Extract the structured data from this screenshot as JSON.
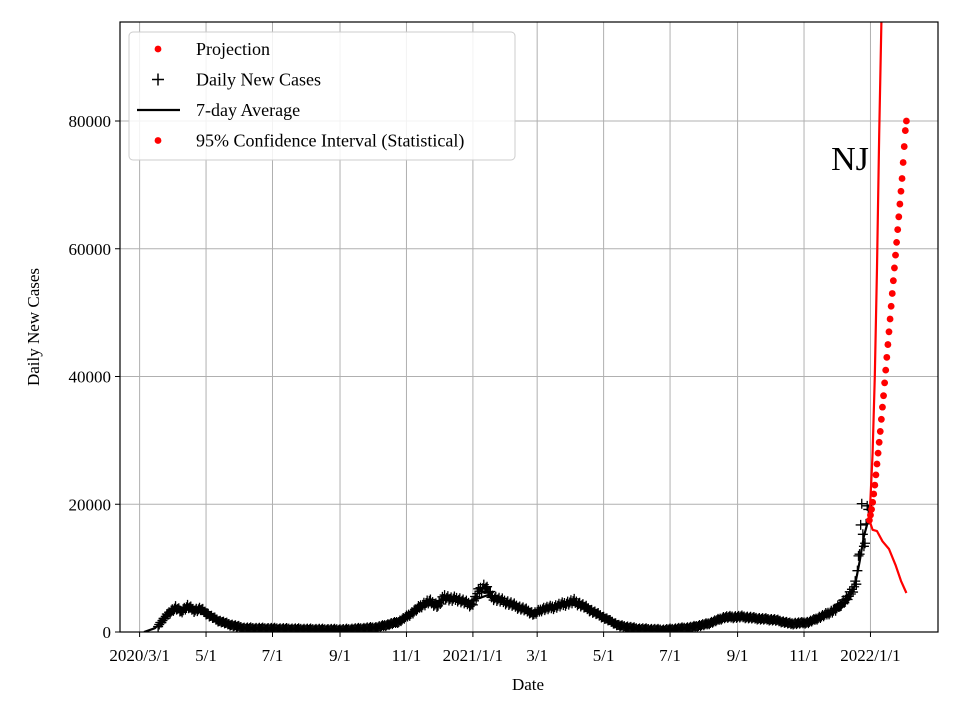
{
  "chart_data": {
    "type": "line",
    "state_label": "NJ",
    "xlabel": "Date",
    "ylabel": "Daily New Cases",
    "xlim": [
      "2020-02-12",
      "2022-03-04"
    ],
    "ylim": [
      0,
      95500
    ],
    "x_ticks": [
      {
        "date": "2020-03-01",
        "label": "2020/3/1"
      },
      {
        "date": "2020-05-01",
        "label": "5/1"
      },
      {
        "date": "2020-07-01",
        "label": "7/1"
      },
      {
        "date": "2020-09-01",
        "label": "9/1"
      },
      {
        "date": "2020-11-01",
        "label": "11/1"
      },
      {
        "date": "2021-01-01",
        "label": "2021/1/1"
      },
      {
        "date": "2021-03-01",
        "label": "3/1"
      },
      {
        "date": "2021-05-01",
        "label": "5/1"
      },
      {
        "date": "2021-07-01",
        "label": "7/1"
      },
      {
        "date": "2021-09-01",
        "label": "9/1"
      },
      {
        "date": "2021-11-01",
        "label": "11/1"
      },
      {
        "date": "2022-01-01",
        "label": "2022/1/1"
      }
    ],
    "y_ticks": [
      0,
      20000,
      40000,
      60000,
      80000
    ],
    "grid": true,
    "legend_position": "upper-left",
    "legend": [
      {
        "label": "Projection",
        "marker": "dot",
        "color": "#ff0000"
      },
      {
        "label": "Daily New Cases",
        "marker": "plus",
        "color": "#000000"
      },
      {
        "label": "7-day Average",
        "marker": "line",
        "color": "#000000"
      },
      {
        "label": "95% Confidence Interval (Statistical)",
        "marker": "dot",
        "color": "#ff0000"
      }
    ],
    "series": [
      {
        "name": "7-day Average",
        "style": "line",
        "color": "#000000",
        "points": [
          [
            "2020-03-05",
            0
          ],
          [
            "2020-03-15",
            600
          ],
          [
            "2020-03-25",
            2200
          ],
          [
            "2020-04-05",
            3500
          ],
          [
            "2020-04-15",
            3600
          ],
          [
            "2020-04-25",
            3100
          ],
          [
            "2020-05-05",
            2400
          ],
          [
            "2020-05-15",
            1500
          ],
          [
            "2020-05-25",
            1000
          ],
          [
            "2020-06-10",
            600
          ],
          [
            "2020-07-01",
            400
          ],
          [
            "2020-08-01",
            400
          ],
          [
            "2020-09-01",
            400
          ],
          [
            "2020-09-20",
            500
          ],
          [
            "2020-10-10",
            900
          ],
          [
            "2020-10-25",
            1700
          ],
          [
            "2020-11-10",
            3400
          ],
          [
            "2020-11-25",
            4500
          ],
          [
            "2020-12-10",
            5300
          ],
          [
            "2020-12-25",
            4700
          ],
          [
            "2021-01-05",
            5200
          ],
          [
            "2021-01-15",
            5800
          ],
          [
            "2021-01-25",
            5100
          ],
          [
            "2021-02-10",
            3800
          ],
          [
            "2021-02-25",
            3200
          ],
          [
            "2021-03-15",
            3700
          ],
          [
            "2021-04-01",
            4300
          ],
          [
            "2021-04-15",
            3900
          ],
          [
            "2021-05-01",
            2200
          ],
          [
            "2021-05-15",
            1100
          ],
          [
            "2021-06-01",
            500
          ],
          [
            "2021-06-20",
            300
          ],
          [
            "2021-07-10",
            400
          ],
          [
            "2021-07-25",
            900
          ],
          [
            "2021-08-15",
            1700
          ],
          [
            "2021-09-01",
            2000
          ],
          [
            "2021-09-15",
            2000
          ],
          [
            "2021-10-01",
            1700
          ],
          [
            "2021-10-20",
            1400
          ],
          [
            "2021-11-05",
            1400
          ],
          [
            "2021-11-20",
            2300
          ],
          [
            "2021-12-05",
            3700
          ],
          [
            "2021-12-12",
            5000
          ],
          [
            "2021-12-18",
            7500
          ],
          [
            "2021-12-22",
            11000
          ],
          [
            "2021-12-26",
            15000
          ],
          [
            "2021-12-30",
            17500
          ]
        ]
      },
      {
        "name": "Daily New Cases",
        "style": "plus",
        "color": "#000000",
        "points": [
          [
            "2020-03-18",
            1000
          ],
          [
            "2020-03-28",
            3000
          ],
          [
            "2020-04-03",
            3800
          ],
          [
            "2020-04-08",
            3200
          ],
          [
            "2020-04-14",
            4000
          ],
          [
            "2020-04-20",
            3400
          ],
          [
            "2020-04-26",
            3600
          ],
          [
            "2020-05-04",
            2600
          ],
          [
            "2020-05-12",
            1800
          ],
          [
            "2020-05-22",
            1200
          ],
          [
            "2020-06-05",
            600
          ],
          [
            "2020-07-05",
            500
          ],
          [
            "2020-08-05",
            400
          ],
          [
            "2020-09-05",
            350
          ],
          [
            "2020-10-05",
            700
          ],
          [
            "2020-10-25",
            1600
          ],
          [
            "2020-11-08",
            3200
          ],
          [
            "2020-11-15",
            4200
          ],
          [
            "2020-11-22",
            4800
          ],
          [
            "2020-11-30",
            4100
          ],
          [
            "2020-12-06",
            5600
          ],
          [
            "2020-12-12",
            5100
          ],
          [
            "2020-12-18",
            5200
          ],
          [
            "2020-12-24",
            4700
          ],
          [
            "2020-12-31",
            4200
          ],
          [
            "2021-01-07",
            6600
          ],
          [
            "2021-01-12",
            7200
          ],
          [
            "2021-01-18",
            5600
          ],
          [
            "2021-01-24",
            5100
          ],
          [
            "2021-02-02",
            4600
          ],
          [
            "2021-02-10",
            4000
          ],
          [
            "2021-02-18",
            3500
          ],
          [
            "2021-02-26",
            2800
          ],
          [
            "2021-03-06",
            3600
          ],
          [
            "2021-03-16",
            3900
          ],
          [
            "2021-03-26",
            4400
          ],
          [
            "2021-04-04",
            4800
          ],
          [
            "2021-04-12",
            4100
          ],
          [
            "2021-04-20",
            3300
          ],
          [
            "2021-05-03",
            2100
          ],
          [
            "2021-05-15",
            1000
          ],
          [
            "2021-06-01",
            500
          ],
          [
            "2021-06-25",
            300
          ],
          [
            "2021-07-20",
            700
          ],
          [
            "2021-08-05",
            1300
          ],
          [
            "2021-08-20",
            2300
          ],
          [
            "2021-09-05",
            2400
          ],
          [
            "2021-09-20",
            2100
          ],
          [
            "2021-10-05",
            1900
          ],
          [
            "2021-10-20",
            1300
          ],
          [
            "2021-11-05",
            1500
          ],
          [
            "2021-11-18",
            2500
          ],
          [
            "2021-11-30",
            3500
          ],
          [
            "2021-12-06",
            4600
          ],
          [
            "2021-12-12",
            5500
          ],
          [
            "2021-12-16",
            6800
          ],
          [
            "2021-12-19",
            8000
          ],
          [
            "2021-12-22",
            12800
          ],
          [
            "2021-12-23",
            16500
          ],
          [
            "2021-12-24",
            18600
          ],
          [
            "2021-12-26",
            13000
          ],
          [
            "2021-12-28",
            17200
          ],
          [
            "2021-12-30",
            20500
          ]
        ]
      },
      {
        "name": "Projection",
        "style": "dots",
        "color": "#ff0000",
        "points": [
          [
            "2021-12-31",
            17500
          ],
          [
            "2022-01-01",
            18300
          ],
          [
            "2022-01-02",
            19200
          ],
          [
            "2022-01-03",
            20300
          ],
          [
            "2022-01-04",
            21600
          ],
          [
            "2022-01-05",
            23000
          ],
          [
            "2022-01-06",
            24600
          ],
          [
            "2022-01-07",
            26300
          ],
          [
            "2022-01-08",
            28000
          ],
          [
            "2022-01-09",
            29700
          ],
          [
            "2022-01-10",
            31400
          ],
          [
            "2022-01-11",
            33300
          ],
          [
            "2022-01-12",
            35200
          ],
          [
            "2022-01-13",
            37000
          ],
          [
            "2022-01-14",
            39000
          ],
          [
            "2022-01-15",
            41000
          ],
          [
            "2022-01-16",
            43000
          ],
          [
            "2022-01-17",
            45000
          ],
          [
            "2022-01-18",
            47000
          ],
          [
            "2022-01-19",
            49000
          ],
          [
            "2022-01-20",
            51000
          ],
          [
            "2022-01-21",
            53000
          ],
          [
            "2022-01-22",
            55000
          ],
          [
            "2022-01-23",
            57000
          ],
          [
            "2022-01-24",
            59000
          ],
          [
            "2022-01-25",
            61000
          ],
          [
            "2022-01-26",
            63000
          ],
          [
            "2022-01-27",
            65000
          ],
          [
            "2022-01-28",
            67000
          ],
          [
            "2022-01-29",
            69000
          ],
          [
            "2022-01-30",
            71000
          ],
          [
            "2022-01-31",
            73500
          ],
          [
            "2022-02-01",
            76000
          ],
          [
            "2022-02-02",
            78500
          ],
          [
            "2022-02-03",
            80000
          ]
        ]
      },
      {
        "name": "95% Confidence Interval (Statistical) upper",
        "style": "line",
        "color": "#ff0000",
        "points": [
          [
            "2021-12-31",
            17500
          ],
          [
            "2022-01-01",
            21000
          ],
          [
            "2022-01-03",
            28000
          ],
          [
            "2022-01-05",
            40000
          ],
          [
            "2022-01-07",
            57000
          ],
          [
            "2022-01-09",
            78000
          ],
          [
            "2022-01-11",
            95500
          ]
        ]
      },
      {
        "name": "95% Confidence Interval (Statistical) lower",
        "style": "line",
        "color": "#ff0000",
        "points": [
          [
            "2021-12-31",
            17500
          ],
          [
            "2022-01-03",
            16000
          ],
          [
            "2022-01-07",
            15800
          ],
          [
            "2022-01-12",
            14200
          ],
          [
            "2022-01-18",
            13000
          ],
          [
            "2022-01-24",
            10500
          ],
          [
            "2022-01-29",
            8000
          ],
          [
            "2022-02-03",
            6100
          ]
        ]
      }
    ]
  }
}
